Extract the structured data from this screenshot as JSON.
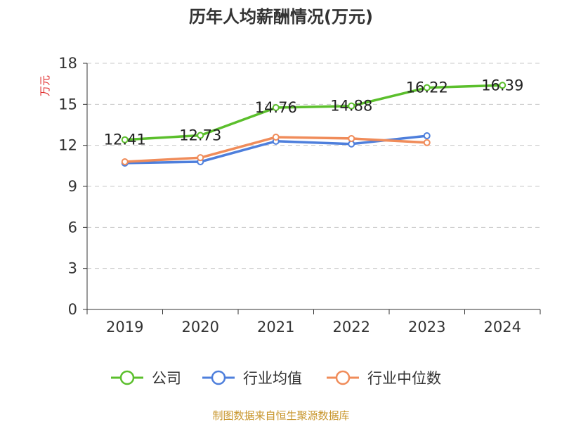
{
  "chart_data": {
    "type": "line",
    "title": "历年人均薪酬情况(万元)",
    "ylabel": "万元",
    "xlabel": "",
    "categories": [
      "2019",
      "2020",
      "2021",
      "2022",
      "2023",
      "2024"
    ],
    "ylim": [
      0,
      18
    ],
    "yticks": [
      0,
      3,
      6,
      9,
      12,
      15,
      18
    ],
    "grid": true,
    "legend_position": "bottom",
    "series": [
      {
        "name": "公司",
        "color": "#5bbf2c",
        "values": [
          12.41,
          12.73,
          14.76,
          14.88,
          16.22,
          16.39
        ],
        "labels": [
          "12.41",
          "12.73",
          "14.76",
          "14.88",
          "16.22",
          "16.39"
        ]
      },
      {
        "name": "行业均值",
        "color": "#4e7fdc",
        "values": [
          10.7,
          10.8,
          12.3,
          12.1,
          12.7,
          null
        ]
      },
      {
        "name": "行业中位数",
        "color": "#f08c5a",
        "values": [
          10.8,
          11.1,
          12.6,
          12.5,
          12.2,
          null
        ]
      }
    ]
  },
  "footer": {
    "source": "制图数据来自恒生聚源数据库"
  }
}
